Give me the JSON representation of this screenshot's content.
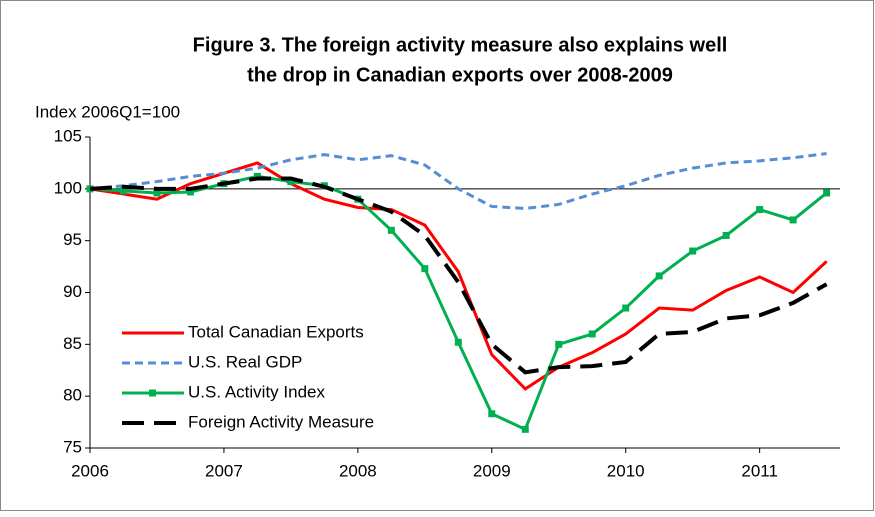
{
  "chart_data": {
    "type": "line",
    "title": [
      "Figure 3. The foreign activity measure also explains well",
      "the drop in Canadian exports over 2008-2009"
    ],
    "ylabel": "Index 2006Q1=100",
    "x": [
      2006,
      2006.25,
      2006.5,
      2006.75,
      2007,
      2007.25,
      2007.5,
      2007.75,
      2008,
      2008.25,
      2008.5,
      2008.75,
      2009,
      2009.25,
      2009.5,
      2009.75,
      2010,
      2010.25,
      2010.5,
      2010.75,
      2011,
      2011.25,
      2011.5
    ],
    "xlim": [
      2006,
      2011.6
    ],
    "xticks": [
      2006,
      2007,
      2008,
      2009,
      2010,
      2011
    ],
    "ylim": [
      75,
      105
    ],
    "yticks": [
      75,
      80,
      85,
      90,
      95,
      100,
      105
    ],
    "reference_line": 100,
    "legend": "lower left",
    "series": [
      {
        "name": "Total Canadian Exports",
        "color": "#ff0000",
        "style": "solid",
        "values": [
          100,
          99.5,
          99,
          100.5,
          101.5,
          102.5,
          100.5,
          99,
          98.2,
          98,
          96.5,
          92,
          84,
          80.7,
          82.8,
          84.2,
          86,
          88.5,
          88.3,
          90.2,
          91.5,
          90,
          93
        ]
      },
      {
        "name": "U.S. Real GDP",
        "color": "#558ed5",
        "style": "dashed",
        "values": [
          100,
          100.3,
          100.7,
          101.2,
          101.5,
          102,
          102.8,
          103.3,
          102.8,
          103.2,
          102.3,
          100,
          98.3,
          98.1,
          98.5,
          99.5,
          100.3,
          101.3,
          102,
          102.5,
          102.7,
          103,
          103.4
        ]
      },
      {
        "name": "U.S. Activity Index",
        "color": "#00b050",
        "style": "squares",
        "values": [
          100,
          99.8,
          99.6,
          99.7,
          100.5,
          101.2,
          100.7,
          100.3,
          99,
          96,
          92.3,
          85.2,
          78.3,
          76.8,
          85,
          86,
          88.5,
          91.6,
          94,
          95.5,
          98,
          97,
          99.6
        ]
      },
      {
        "name": "Foreign Activity Measure",
        "color": "#000000",
        "style": "longdash",
        "values": [
          100,
          100.2,
          100,
          100,
          100.5,
          101,
          101,
          100.2,
          99,
          97.8,
          95.5,
          91,
          85,
          82.3,
          82.8,
          82.9,
          83.3,
          86,
          86.2,
          87.5,
          87.8,
          89,
          90.8
        ]
      }
    ]
  }
}
